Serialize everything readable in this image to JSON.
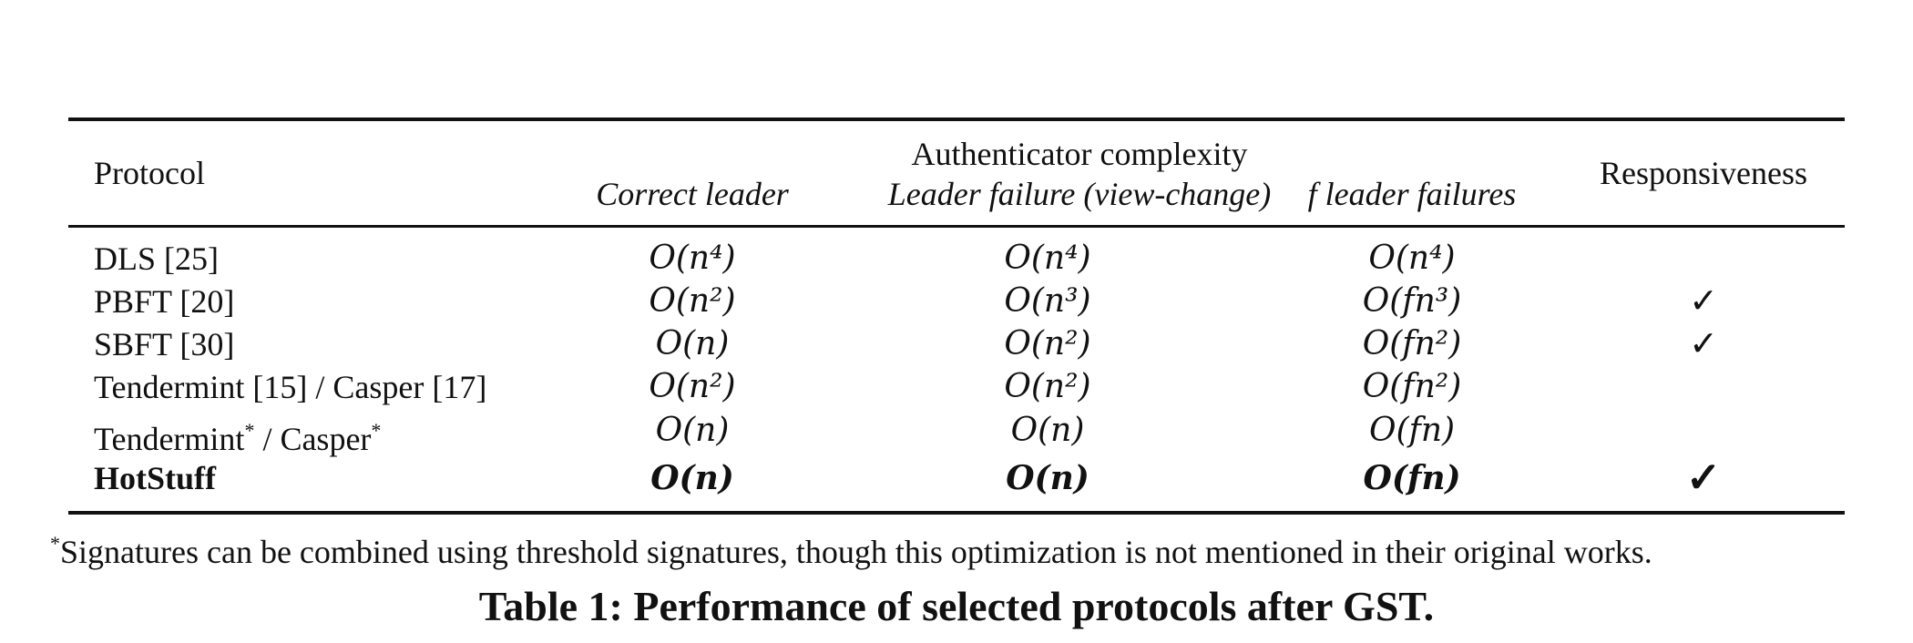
{
  "table": {
    "header": {
      "protocol": "Protocol",
      "group_title": "Authenticator complexity",
      "col_correct_leader": "Correct leader",
      "col_leader_failure": "Leader failure (view-change)",
      "col_f_failures": "f leader failures",
      "col_responsiveness": "Responsiveness"
    },
    "rows": [
      {
        "protocol": "DLS [25]",
        "correct": "O(n⁴)",
        "failure": "O(n⁴)",
        "f_failures": "O(n⁴)",
        "responsive": ""
      },
      {
        "protocol": "PBFT [20]",
        "correct": "O(n²)",
        "failure": "O(n³)",
        "f_failures": "O(fn³)",
        "responsive": "✓"
      },
      {
        "protocol": "SBFT [30]",
        "correct": "O(n)",
        "failure": "O(n²)",
        "f_failures": "O(fn²)",
        "responsive": "✓"
      },
      {
        "protocol": "Tendermint [15] / Casper [17]",
        "correct": "O(n²)",
        "failure": "O(n²)",
        "f_failures": "O(fn²)",
        "responsive": ""
      },
      {
        "protocol_a": "Tendermint",
        "protocol_b": "/ Casper",
        "star": "*",
        "correct": "O(n)",
        "failure": "O(n)",
        "f_failures": "O(fn)",
        "responsive": ""
      },
      {
        "protocol": "HotStuff",
        "correct": "O(n)",
        "failure": "O(n)",
        "f_failures": "O(fn)",
        "responsive": "✓"
      }
    ]
  },
  "footnote": {
    "mark": "*",
    "text": "Signatures can be combined using threshold signatures, though this optimization is not mentioned in their original works."
  },
  "caption": "Table 1: Performance of selected protocols after GST."
}
